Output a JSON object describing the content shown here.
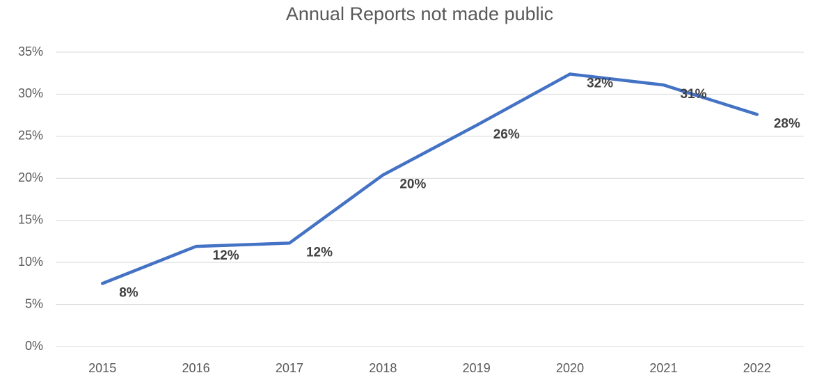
{
  "chart_data": {
    "type": "line",
    "title": "Annual Reports not made public",
    "categories": [
      "2015",
      "2016",
      "2017",
      "2018",
      "2019",
      "2020",
      "2021",
      "2022"
    ],
    "series": [
      {
        "name": "Annual Reports not made public",
        "color": "#4472c4",
        "values": [
          7.5,
          11.9,
          12.3,
          20.4,
          26.3,
          32.4,
          31.1,
          27.6
        ],
        "value_labels": [
          "8%",
          "12%",
          "12%",
          "20%",
          "26%",
          "32%",
          "31%",
          "28%"
        ]
      }
    ],
    "ylim": [
      0,
      35
    ],
    "yticks": [
      {
        "value": 0,
        "label": "0%"
      },
      {
        "value": 5,
        "label": "5%"
      },
      {
        "value": 10,
        "label": "10%"
      },
      {
        "value": 15,
        "label": "15%"
      },
      {
        "value": 20,
        "label": "20%"
      },
      {
        "value": 25,
        "label": "25%"
      },
      {
        "value": 30,
        "label": "30%"
      },
      {
        "value": 35,
        "label": "35%"
      }
    ],
    "grid": true
  }
}
